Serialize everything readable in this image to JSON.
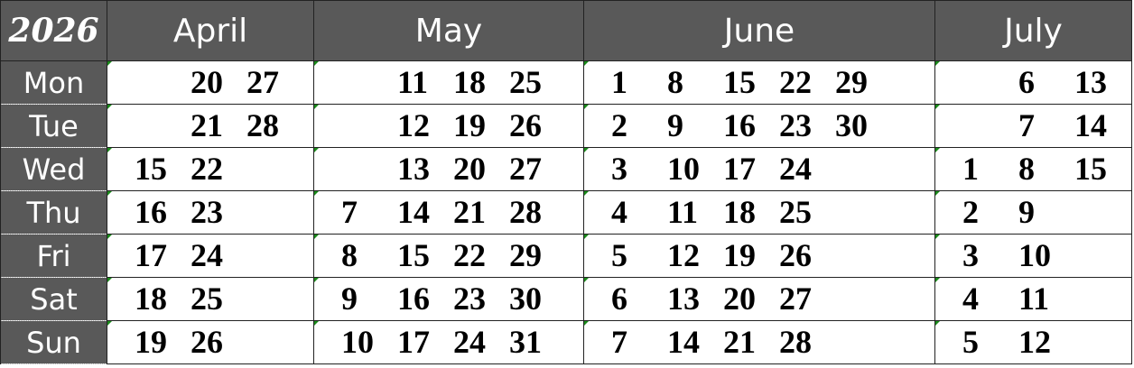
{
  "year": "2026",
  "months": [
    "April",
    "May",
    "June",
    "July"
  ],
  "days": [
    "Mon",
    "Tue",
    "Wed",
    "Thu",
    "Fri",
    "Sat",
    "Sun"
  ],
  "grid": [
    [
      [
        "",
        "20",
        "27"
      ],
      [
        "",
        "11",
        "18",
        "25"
      ],
      [
        "1",
        "8",
        "15",
        "22",
        "29"
      ],
      [
        "",
        "6",
        "13"
      ]
    ],
    [
      [
        "",
        "21",
        "28"
      ],
      [
        "",
        "12",
        "19",
        "26"
      ],
      [
        "2",
        "9",
        "16",
        "23",
        "30"
      ],
      [
        "",
        "7",
        "14"
      ]
    ],
    [
      [
        "15",
        "22",
        ""
      ],
      [
        "",
        "13",
        "20",
        "27"
      ],
      [
        "3",
        "10",
        "17",
        "24"
      ],
      [
        "1",
        "8",
        "15"
      ]
    ],
    [
      [
        "16",
        "23",
        ""
      ],
      [
        "7",
        "14",
        "21",
        "28"
      ],
      [
        "4",
        "11",
        "18",
        "25"
      ],
      [
        "2",
        "9",
        ""
      ]
    ],
    [
      [
        "17",
        "24",
        ""
      ],
      [
        "8",
        "15",
        "22",
        "29"
      ],
      [
        "5",
        "12",
        "19",
        "26"
      ],
      [
        "3",
        "10",
        ""
      ]
    ],
    [
      [
        "18",
        "25",
        ""
      ],
      [
        "9",
        "16",
        "23",
        "30"
      ],
      [
        "6",
        "13",
        "20",
        "27"
      ],
      [
        "4",
        "11",
        ""
      ]
    ],
    [
      [
        "19",
        "26",
        ""
      ],
      [
        "10",
        "17",
        "24",
        "31"
      ],
      [
        "7",
        "14",
        "21",
        "28"
      ],
      [
        "5",
        "12",
        ""
      ]
    ]
  ],
  "colors": {
    "header_bg": "#595959",
    "header_text": "#ffffff",
    "cell_bg": "#ffffff",
    "indicator": "#1a8a1a"
  }
}
